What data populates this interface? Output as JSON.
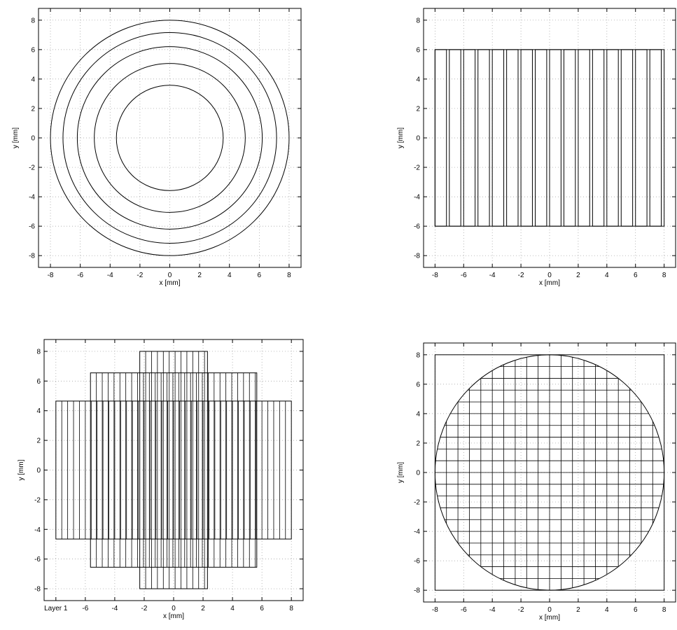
{
  "figure": {
    "description_panels": 4
  },
  "chart_data": [
    {
      "type": "diagram",
      "panel": "concentric-rings",
      "xlabel": "x [mm]",
      "ylabel": "y [mm]",
      "xlim": [
        -8.8,
        8.8
      ],
      "ylim": [
        -8.8,
        8.8
      ],
      "xticks": [
        -8,
        -6,
        -4,
        -2,
        0,
        2,
        4,
        6,
        8
      ],
      "yticks": [
        -8,
        -6,
        -4,
        -2,
        0,
        2,
        4,
        6,
        8
      ],
      "grid": true,
      "circle_radii": [
        3.58,
        5.06,
        6.2,
        7.16,
        8.0
      ]
    },
    {
      "type": "diagram",
      "panel": "vertical-strips",
      "xlabel": "x [mm]",
      "ylabel": "y [mm]",
      "xlim": [
        -8.8,
        8.8
      ],
      "ylim": [
        -8.8,
        8.8
      ],
      "xticks": [
        -8,
        -6,
        -4,
        -2,
        0,
        2,
        4,
        6,
        8
      ],
      "yticks": [
        -8,
        -6,
        -4,
        -2,
        0,
        2,
        4,
        6,
        8
      ],
      "grid": true,
      "strip_x_range": [
        -8,
        8
      ],
      "strip_y_range": [
        -6,
        6
      ],
      "strip_count": 16,
      "strip_width": 0.8
    },
    {
      "type": "diagram",
      "panel": "stepped-strips",
      "xlabel": "x [mm]",
      "ylabel": "y [mm]",
      "xlim": [
        -8.8,
        8.8
      ],
      "ylim": [
        -8.8,
        8.8
      ],
      "xticks": [
        -8,
        -6,
        -4,
        -2,
        0,
        2,
        4,
        6,
        8
      ],
      "xtick_labels": [
        "Layer 1",
        "-6",
        "-4",
        "-2",
        "0",
        "2",
        "4",
        "6",
        "8"
      ],
      "yticks": [
        -8,
        -6,
        -4,
        -2,
        0,
        2,
        4,
        6,
        8
      ],
      "grid": true,
      "strip_width": 0.4,
      "blocks": [
        {
          "x": [
            -8,
            8
          ],
          "y": [
            -4.65,
            4.65
          ]
        },
        {
          "x": [
            -5.65,
            5.65
          ],
          "y": [
            -6.55,
            6.55
          ]
        },
        {
          "x": [
            -2.3,
            2.3
          ],
          "y": [
            -8.0,
            8.0
          ]
        }
      ]
    },
    {
      "type": "diagram",
      "panel": "grid-in-circle",
      "xlabel": "x [mm]",
      "ylabel": "y [mm]",
      "xlim": [
        -8.8,
        8.8
      ],
      "ylim": [
        -8.8,
        8.8
      ],
      "xticks": [
        -8,
        -6,
        -4,
        -2,
        0,
        2,
        4,
        6,
        8
      ],
      "yticks": [
        -8,
        -6,
        -4,
        -2,
        0,
        2,
        4,
        6,
        8
      ],
      "grid": true,
      "circle_radius": 8.0,
      "square_half": 8.0,
      "cell_size": 0.8
    }
  ]
}
